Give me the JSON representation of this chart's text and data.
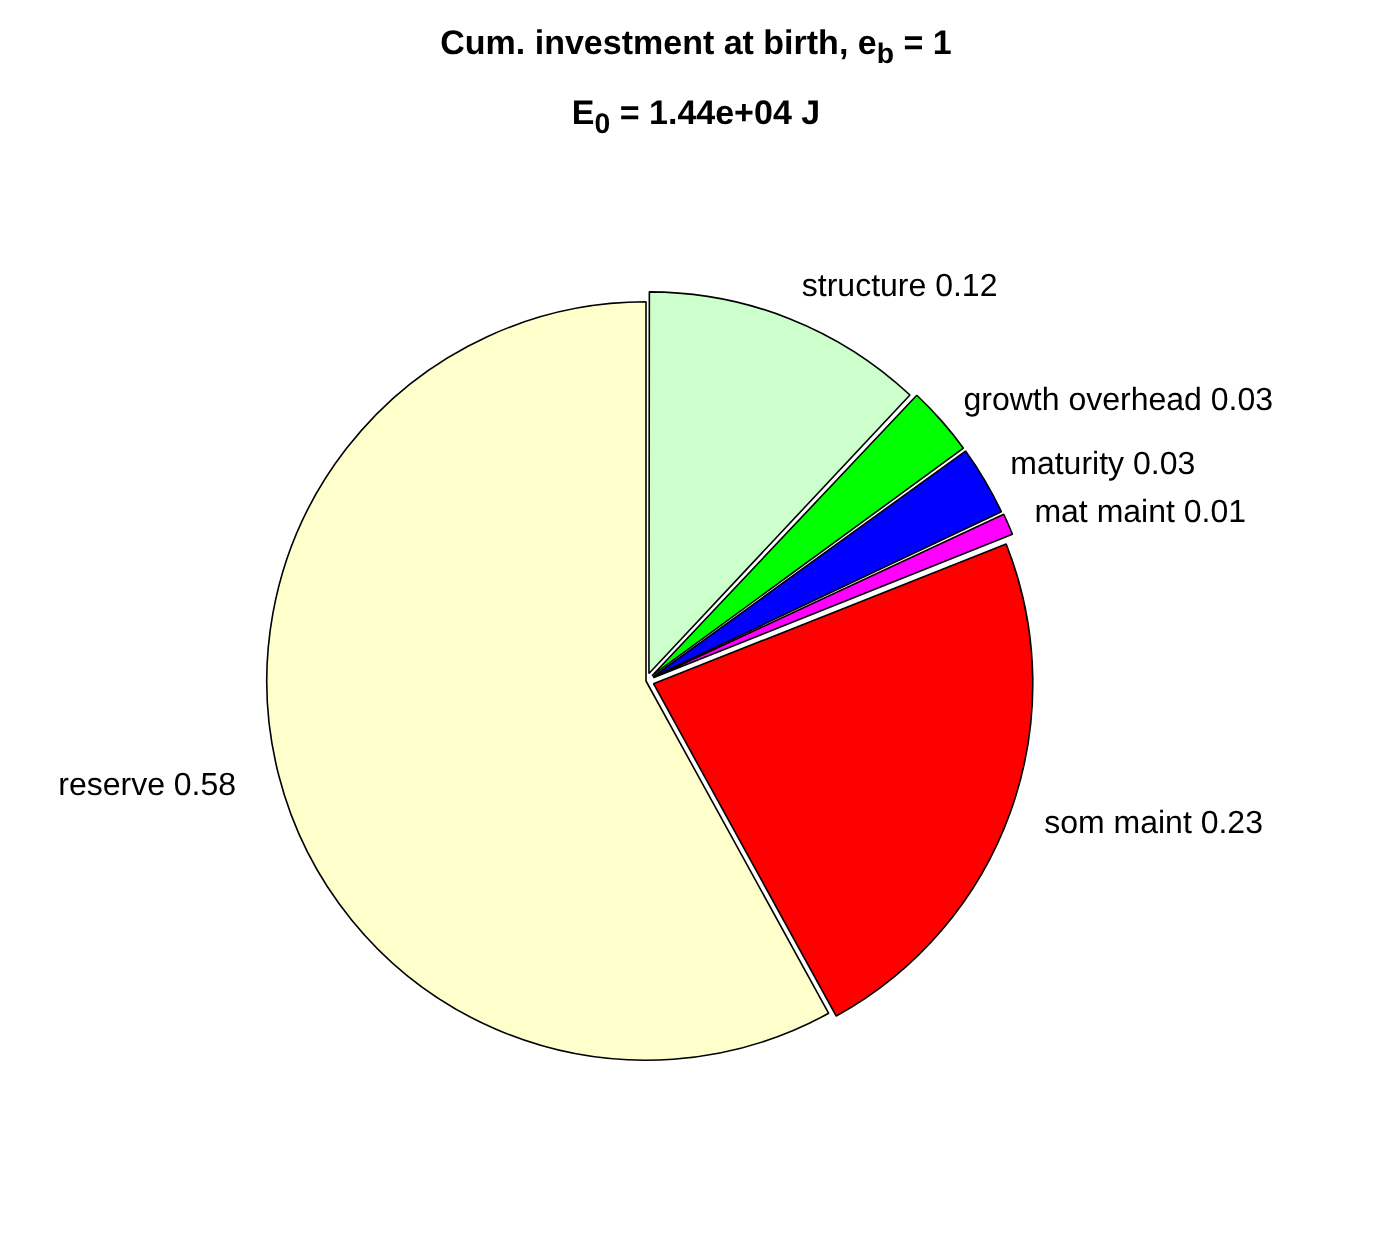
{
  "chart_data": {
    "type": "pie",
    "title": "Cum. investment at birth, e$_{b}$ = 1",
    "subtitle": "E$_{0}$ = 1.44e+04 J",
    "categories": [
      "structure 0.12",
      "growth overhead 0.03",
      "maturity 0.03",
      "mat maint 0.01",
      "som maint 0.23",
      "reserve 0.58"
    ],
    "values": [
      0.12,
      0.03,
      0.03,
      0.01,
      0.23,
      0.58
    ],
    "colors": [
      "#ccffcc",
      "#00ff00",
      "#0000ff",
      "#ff00ff",
      "#ff0000",
      "#ffffcc"
    ],
    "legend": false
  }
}
